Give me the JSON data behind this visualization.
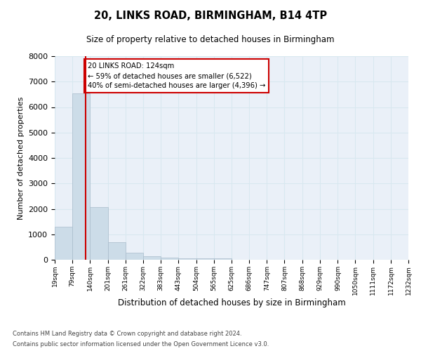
{
  "title": "20, LINKS ROAD, BIRMINGHAM, B14 4TP",
  "subtitle": "Size of property relative to detached houses in Birmingham",
  "xlabel": "Distribution of detached houses by size in Birmingham",
  "ylabel": "Number of detached properties",
  "bar_color": "#ccdce8",
  "bar_edge_color": "#aabccc",
  "grid_color": "#d8e8f0",
  "background_color": "#eaf0f8",
  "vline_x": 124,
  "vline_color": "#cc0000",
  "annotation_text": "20 LINKS ROAD: 124sqm\n← 59% of detached houses are smaller (6,522)\n40% of semi-detached houses are larger (4,396) →",
  "annotation_box_color": "#ffffff",
  "annotation_box_edge": "#cc0000",
  "bin_edges": [
    19,
    79,
    140,
    201,
    261,
    322,
    383,
    443,
    504,
    565,
    625,
    686,
    747,
    807,
    868,
    929,
    990,
    1050,
    1111,
    1172,
    1232
  ],
  "bin_heights": [
    1300,
    6550,
    2060,
    680,
    280,
    145,
    95,
    55,
    55,
    55,
    0,
    0,
    0,
    0,
    0,
    0,
    0,
    0,
    0,
    0
  ],
  "ylim": [
    0,
    8000
  ],
  "yticks": [
    0,
    1000,
    2000,
    3000,
    4000,
    5000,
    6000,
    7000,
    8000
  ],
  "footnote1": "Contains HM Land Registry data © Crown copyright and database right 2024.",
  "footnote2": "Contains public sector information licensed under the Open Government Licence v3.0."
}
